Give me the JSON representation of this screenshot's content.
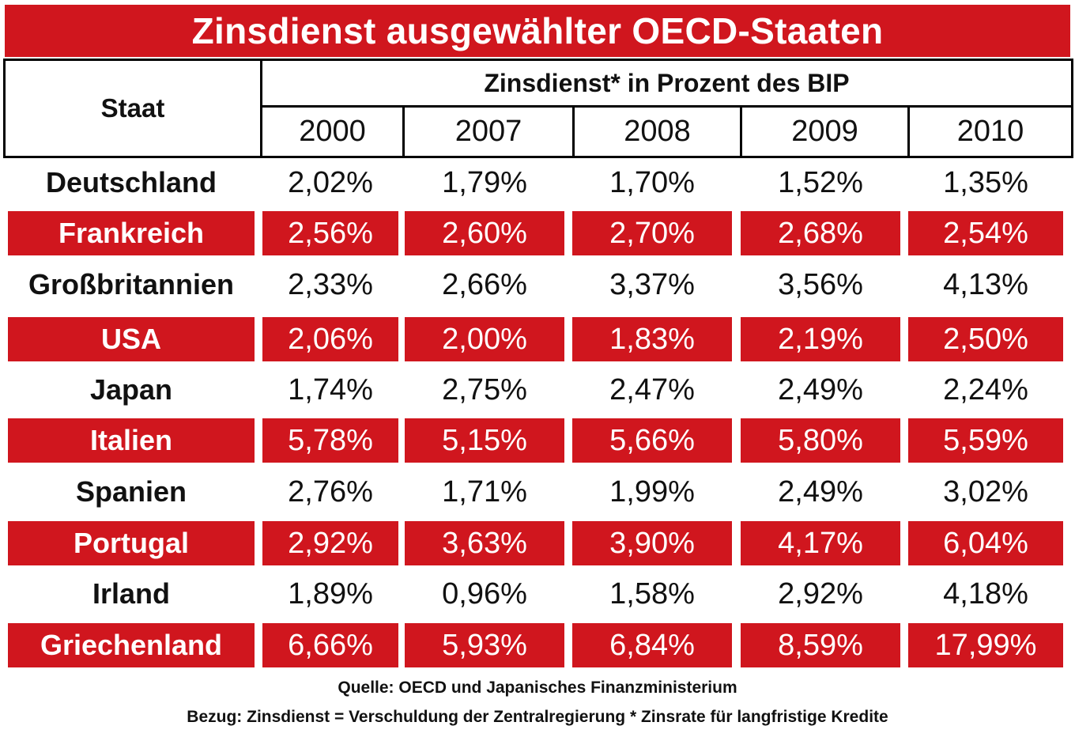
{
  "title": "Zinsdienst ausgewählter OECD-Staaten",
  "header": {
    "staat_label": "Staat",
    "group_label": "Zinsdienst* in Prozent des BIP",
    "years": [
      "2000",
      "2007",
      "2008",
      "2009",
      "2010"
    ]
  },
  "rows": [
    {
      "country": "Deutschland",
      "values": [
        "2,02%",
        "1,79%",
        "1,70%",
        "1,52%",
        "1,35%"
      ]
    },
    {
      "country": "Frankreich",
      "values": [
        "2,56%",
        "2,60%",
        "2,70%",
        "2,68%",
        "2,54%"
      ]
    },
    {
      "country": "Großbritannien",
      "values": [
        "2,33%",
        "2,66%",
        "3,37%",
        "3,56%",
        "4,13%"
      ]
    },
    {
      "country": "USA",
      "values": [
        "2,06%",
        "2,00%",
        "1,83%",
        "2,19%",
        "2,50%"
      ]
    },
    {
      "country": "Japan",
      "values": [
        "1,74%",
        "2,75%",
        "2,47%",
        "2,49%",
        "2,24%"
      ]
    },
    {
      "country": "Italien",
      "values": [
        "5,78%",
        "5,15%",
        "5,66%",
        "5,80%",
        "5,59%"
      ]
    },
    {
      "country": "Spanien",
      "values": [
        "2,76%",
        "1,71%",
        "1,99%",
        "2,49%",
        "3,02%"
      ]
    },
    {
      "country": "Portugal",
      "values": [
        "2,92%",
        "3,63%",
        "3,90%",
        "4,17%",
        "6,04%"
      ]
    },
    {
      "country": "Irland",
      "values": [
        "1,89%",
        "0,96%",
        "1,58%",
        "2,92%",
        "4,18%"
      ]
    },
    {
      "country": "Griechenland",
      "values": [
        "6,66%",
        "5,93%",
        "6,84%",
        "8,59%",
        "17,99%"
      ]
    }
  ],
  "footer": {
    "source": "Quelle: OECD und Japanisches Finanzministerium",
    "note": "Bezug: Zinsdienst = Verschuldung der Zentralregierung * Zinsrate für langfristige Kredite"
  },
  "colors": {
    "accent_red": "#d0161e",
    "text": "#111111"
  },
  "chart_data": {
    "type": "table",
    "title": "Zinsdienst ausgewählter OECD-Staaten",
    "columns": [
      "Staat",
      "2000",
      "2007",
      "2008",
      "2009",
      "2010"
    ],
    "unit": "Prozent des BIP",
    "series": [
      {
        "name": "Deutschland",
        "values": [
          2.02,
          1.79,
          1.7,
          1.52,
          1.35
        ]
      },
      {
        "name": "Frankreich",
        "values": [
          2.56,
          2.6,
          2.7,
          2.68,
          2.54
        ]
      },
      {
        "name": "Großbritannien",
        "values": [
          2.33,
          2.66,
          3.37,
          3.56,
          4.13
        ]
      },
      {
        "name": "USA",
        "values": [
          2.06,
          2.0,
          1.83,
          2.19,
          2.5
        ]
      },
      {
        "name": "Japan",
        "values": [
          1.74,
          2.75,
          2.47,
          2.49,
          2.24
        ]
      },
      {
        "name": "Italien",
        "values": [
          5.78,
          5.15,
          5.66,
          5.8,
          5.59
        ]
      },
      {
        "name": "Spanien",
        "values": [
          2.76,
          1.71,
          1.99,
          2.49,
          3.02
        ]
      },
      {
        "name": "Portugal",
        "values": [
          2.92,
          3.63,
          3.9,
          4.17,
          6.04
        ]
      },
      {
        "name": "Irland",
        "values": [
          1.89,
          0.96,
          1.58,
          2.92,
          4.18
        ]
      },
      {
        "name": "Griechenland",
        "values": [
          6.66,
          5.93,
          6.84,
          8.59,
          17.99
        ]
      }
    ]
  }
}
